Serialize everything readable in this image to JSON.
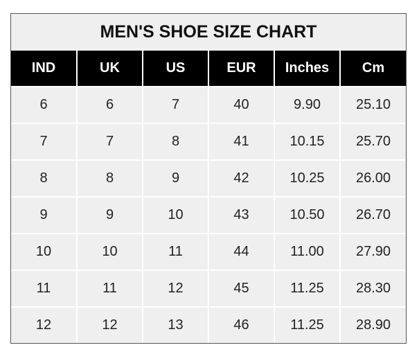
{
  "chart_data": {
    "type": "table",
    "title": "MEN'S SHOE SIZE CHART",
    "columns": [
      "IND",
      "UK",
      "US",
      "EUR",
      "Inches",
      "Cm"
    ],
    "rows": [
      [
        "6",
        "6",
        "7",
        "40",
        "9.90",
        "25.10"
      ],
      [
        "7",
        "7",
        "8",
        "41",
        "10.15",
        "25.70"
      ],
      [
        "8",
        "8",
        "9",
        "42",
        "10.25",
        "26.00"
      ],
      [
        "9",
        "9",
        "10",
        "43",
        "10.50",
        "26.70"
      ],
      [
        "10",
        "10",
        "11",
        "44",
        "11.00",
        "27.90"
      ],
      [
        "11",
        "11",
        "12",
        "45",
        "11.25",
        "28.30"
      ],
      [
        "12",
        "12",
        "13",
        "46",
        "11.25",
        "28.90"
      ]
    ]
  }
}
